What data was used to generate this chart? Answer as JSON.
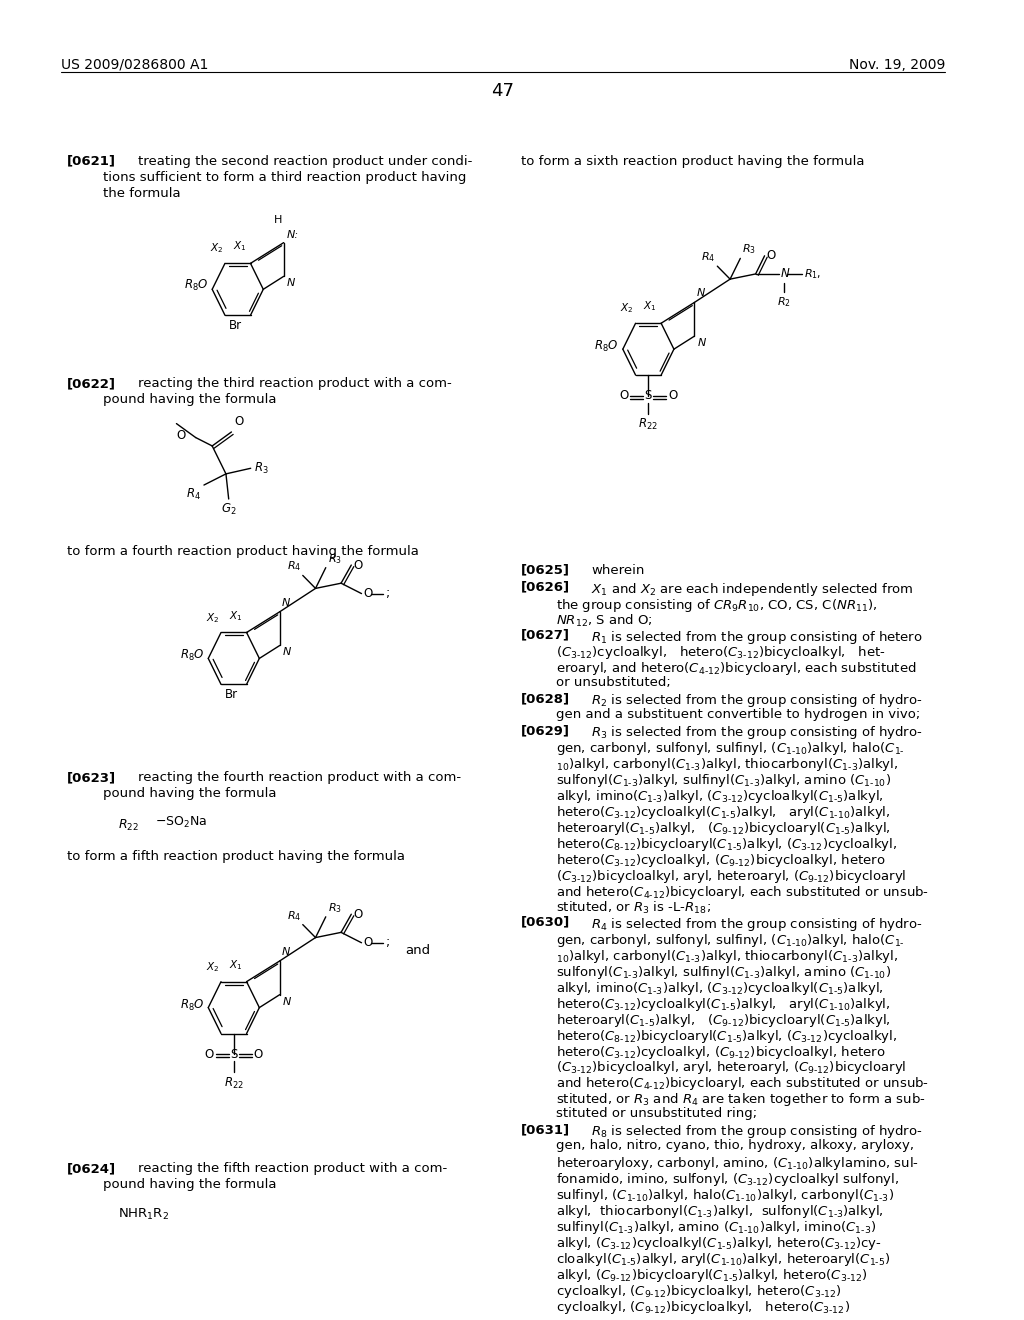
{
  "header_left": "US 2009/0286800 A1",
  "header_right": "Nov. 19, 2009",
  "page_number": "47",
  "bg_color": "#ffffff",
  "text_color": "#000000"
}
